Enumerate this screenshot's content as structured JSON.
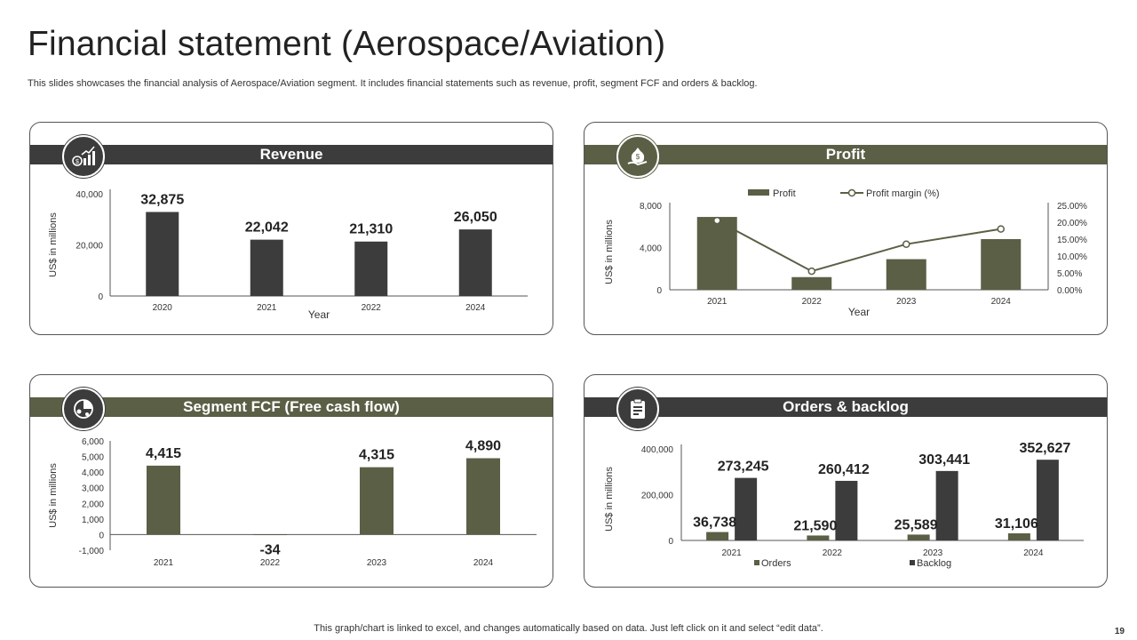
{
  "slide": {
    "title": "Financial statement (Aerospace/Aviation)",
    "subtitle": "This slides showcases the financial analysis of Aerospace/Aviation segment. It includes financial statements such as revenue, profit, segment FCF and orders & backlog.",
    "footer": "This graph/chart is linked to excel, and changes automatically based on data. Just left click on it and select “edit data”.",
    "page_number": "19"
  },
  "colors": {
    "dark": "#3c3c3c",
    "olive": "#5b5f45",
    "axis": "#555555"
  },
  "panels": {
    "revenue": {
      "title": "Revenue",
      "icon": "revenue-growth-icon"
    },
    "profit": {
      "title": "Profit",
      "icon": "money-bag-hand-icon"
    },
    "fcf": {
      "title": "Segment FCF (Free cash flow)",
      "icon": "cash-flow-icon"
    },
    "orders": {
      "title": "Orders & backlog",
      "icon": "clipboard-order-icon"
    }
  },
  "chart_data": [
    {
      "id": "revenue",
      "type": "bar",
      "categories": [
        "2020",
        "2021",
        "2022",
        "2024"
      ],
      "values": [
        32875,
        22042,
        21310,
        26050
      ],
      "value_labels": [
        "32,875",
        "22,042",
        "21,310",
        "26,050"
      ],
      "xlabel": "Year",
      "ylabel": "US$ in millions",
      "ylim": [
        0,
        40000
      ],
      "yticks": [
        0,
        20000,
        40000
      ],
      "ytick_labels": [
        "0",
        "20,000",
        "40,000"
      ],
      "color": "#3c3c3c",
      "grid": false
    },
    {
      "id": "profit",
      "type": "bar",
      "categories": [
        "2021",
        "2022",
        "2023",
        "2024"
      ],
      "series": [
        {
          "name": "Profit",
          "kind": "bar",
          "axis": "left",
          "values": [
            6900,
            1200,
            2900,
            4800
          ],
          "color": "#5b5f45"
        },
        {
          "name": "Profit margin (%)",
          "kind": "line",
          "axis": "right",
          "values": [
            20.5,
            5.5,
            13.5,
            18.0
          ],
          "color": "#5b5f45"
        }
      ],
      "xlabel": "Year",
      "ylabel": "US$ in millions",
      "ylim": [
        0,
        8000
      ],
      "yticks": [
        0,
        4000,
        8000
      ],
      "ytick_labels": [
        "0",
        "4,000",
        "8,000"
      ],
      "y2lim": [
        0,
        25
      ],
      "y2ticks": [
        0,
        5,
        10,
        15,
        20,
        25
      ],
      "y2tick_labels": [
        "0.00%",
        "5.00%",
        "10.00%",
        "15.00%",
        "20.00%",
        "25.00%"
      ],
      "legend": "top",
      "grid": false
    },
    {
      "id": "fcf",
      "type": "bar",
      "categories": [
        "2021",
        "2022",
        "2023",
        "2024"
      ],
      "values": [
        4415,
        -34,
        4315,
        4890
      ],
      "value_labels": [
        "4,415",
        "-34",
        "4,315",
        "4,890"
      ],
      "xlabel": "",
      "ylabel": "US$ in millions",
      "ylim": [
        -1000,
        6000
      ],
      "yticks": [
        -1000,
        0,
        1000,
        2000,
        3000,
        4000,
        5000,
        6000
      ],
      "ytick_labels": [
        "-1,000",
        "0",
        "1,000",
        "2,000",
        "3,000",
        "4,000",
        "5,000",
        "6,000"
      ],
      "color": "#5b5f45",
      "grid": false
    },
    {
      "id": "orders",
      "type": "bar",
      "categories": [
        "2021",
        "2022",
        "2023",
        "2024"
      ],
      "series": [
        {
          "name": "Orders",
          "values": [
            36738,
            21590,
            25589,
            31106
          ],
          "value_labels": [
            "36,738",
            "21,590",
            "25,589",
            "31,106"
          ],
          "color": "#5b5f45"
        },
        {
          "name": "Backlog",
          "values": [
            273245,
            260412,
            303441,
            352627
          ],
          "value_labels": [
            "273,245",
            "260,412",
            "303,441",
            "352,627"
          ],
          "color": "#3c3c3c"
        }
      ],
      "xlabel": "",
      "ylabel": "US$ in millions",
      "ylim": [
        0,
        400000
      ],
      "yticks": [
        0,
        200000,
        400000
      ],
      "ytick_labels": [
        "0",
        "200,000",
        "400,000"
      ],
      "legend": "bottom",
      "grid": false
    }
  ]
}
